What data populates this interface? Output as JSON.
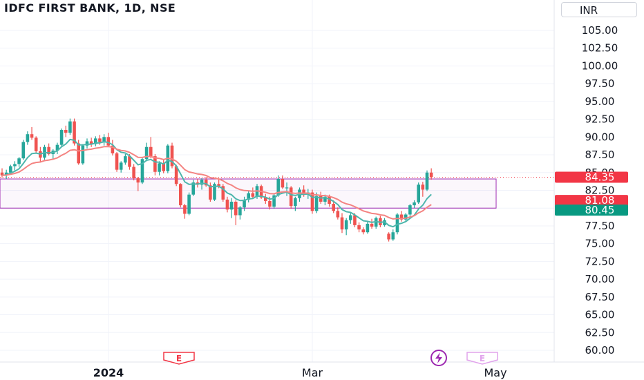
{
  "header": {
    "title": "IDFC FIRST BANK, 1D, NSE",
    "currency": "INR"
  },
  "colors": {
    "up": "#26a69a",
    "down": "#ef5350",
    "ema_fast": "#4db6ac",
    "ema_slow": "#f48482",
    "range_box": "#9c27b0",
    "grid": "#f0f3fa"
  },
  "events": {
    "earnings_label": "E",
    "dividend_icon": "lightning-icon"
  },
  "price_badges": [
    {
      "value": 84.35,
      "label": "84.35",
      "color": "#f23645"
    },
    {
      "value": 81.08,
      "label": "81.08",
      "color": "#f23645"
    },
    {
      "value": 80.45,
      "label": "80.45",
      "color": "#089981"
    }
  ],
  "chart_data": {
    "type": "candlestick",
    "symbol": "IDFC FIRST BANK",
    "interval": "1D",
    "exchange": "NSE",
    "ylim": [
      58.8,
      108.2
    ],
    "y_ticks": [
      "105.00",
      "102.50",
      "100.00",
      "97.50",
      "95.00",
      "92.50",
      "90.00",
      "87.50",
      "85.00",
      "82.50",
      "80.00",
      "77.50",
      "75.00",
      "72.50",
      "70.00",
      "67.50",
      "65.00",
      "62.50",
      "60.00"
    ],
    "x_ticks": [
      {
        "label": "2024",
        "bold": true
      },
      {
        "label": "Mar",
        "bold": false
      },
      {
        "label": "May",
        "bold": false
      }
    ],
    "range_box": {
      "low": 80.0,
      "high": 84.1
    },
    "last_price_line": 84.35,
    "candles": [
      [
        85.0,
        85.6,
        84.3,
        84.6
      ],
      [
        84.6,
        85.4,
        84.1,
        85.0
      ],
      [
        85.0,
        86.1,
        84.7,
        85.9
      ],
      [
        85.9,
        86.6,
        85.3,
        86.2
      ],
      [
        86.2,
        87.2,
        85.8,
        87.0
      ],
      [
        87.0,
        89.6,
        86.8,
        89.3
      ],
      [
        89.3,
        90.8,
        88.9,
        90.4
      ],
      [
        90.4,
        91.4,
        89.6,
        89.9
      ],
      [
        89.9,
        90.1,
        87.7,
        88.0
      ],
      [
        88.0,
        88.6,
        86.4,
        87.1
      ],
      [
        87.1,
        88.9,
        86.8,
        88.6
      ],
      [
        88.6,
        89.1,
        87.4,
        87.6
      ],
      [
        87.6,
        88.3,
        86.9,
        88.1
      ],
      [
        88.1,
        89.2,
        87.6,
        88.9
      ],
      [
        88.9,
        91.2,
        88.6,
        91.0
      ],
      [
        91.0,
        91.6,
        90.0,
        90.6
      ],
      [
        90.6,
        92.6,
        90.3,
        92.2
      ],
      [
        92.2,
        92.6,
        88.8,
        89.1
      ],
      [
        89.1,
        89.6,
        86.1,
        86.3
      ],
      [
        86.3,
        89.0,
        86.1,
        88.8
      ],
      [
        88.8,
        89.8,
        88.4,
        89.4
      ],
      [
        89.4,
        89.9,
        88.6,
        89.0
      ],
      [
        89.0,
        90.1,
        88.7,
        89.8
      ],
      [
        89.8,
        90.3,
        88.9,
        89.3
      ],
      [
        89.3,
        90.4,
        88.8,
        90.0
      ],
      [
        90.0,
        90.6,
        88.6,
        88.8
      ],
      [
        88.8,
        89.6,
        87.4,
        87.7
      ],
      [
        87.7,
        87.9,
        85.1,
        85.4
      ],
      [
        85.4,
        86.6,
        85.0,
        86.4
      ],
      [
        86.4,
        87.6,
        86.1,
        87.3
      ],
      [
        87.3,
        87.6,
        85.4,
        85.8
      ],
      [
        85.8,
        86.2,
        83.9,
        84.2
      ],
      [
        84.2,
        84.4,
        82.4,
        83.6
      ],
      [
        83.6,
        87.1,
        83.4,
        86.9
      ],
      [
        86.9,
        89.2,
        86.6,
        88.6
      ],
      [
        88.6,
        90.0,
        87.0,
        87.3
      ],
      [
        87.3,
        87.6,
        84.6,
        85.1
      ],
      [
        85.1,
        86.6,
        84.6,
        86.3
      ],
      [
        86.3,
        86.8,
        84.9,
        85.2
      ],
      [
        85.2,
        89.0,
        84.9,
        88.8
      ],
      [
        88.8,
        89.2,
        85.6,
        85.9
      ],
      [
        85.9,
        86.1,
        83.1,
        83.4
      ],
      [
        83.4,
        83.5,
        80.1,
        80.4
      ],
      [
        80.4,
        80.6,
        78.5,
        79.2
      ],
      [
        79.2,
        82.2,
        79.0,
        81.9
      ],
      [
        81.9,
        84.0,
        81.7,
        83.6
      ],
      [
        83.6,
        84.1,
        82.9,
        83.3
      ],
      [
        83.3,
        84.2,
        82.6,
        84.0
      ],
      [
        84.0,
        84.4,
        83.0,
        83.2
      ],
      [
        83.2,
        83.6,
        80.9,
        81.2
      ],
      [
        81.2,
        83.6,
        81.0,
        83.4
      ],
      [
        83.4,
        84.1,
        82.8,
        83.1
      ],
      [
        83.1,
        83.4,
        80.9,
        81.2
      ],
      [
        81.2,
        81.6,
        79.4,
        79.8
      ],
      [
        79.8,
        81.4,
        78.6,
        80.9
      ],
      [
        80.9,
        81.1,
        77.6,
        79.0
      ],
      [
        79.0,
        80.3,
        78.4,
        80.1
      ],
      [
        80.1,
        81.6,
        79.6,
        81.2
      ],
      [
        81.2,
        82.4,
        80.8,
        82.1
      ],
      [
        82.1,
        82.9,
        81.3,
        81.6
      ],
      [
        81.6,
        83.4,
        81.3,
        83.1
      ],
      [
        83.1,
        83.3,
        81.3,
        81.5
      ],
      [
        81.5,
        82.0,
        80.6,
        81.0
      ],
      [
        81.0,
        81.6,
        79.8,
        80.2
      ],
      [
        80.2,
        82.1,
        79.9,
        81.8
      ],
      [
        81.8,
        84.6,
        81.6,
        84.1
      ],
      [
        84.1,
        84.6,
        82.7,
        82.9
      ],
      [
        82.9,
        83.6,
        81.7,
        82.9
      ],
      [
        82.9,
        83.1,
        79.9,
        80.3
      ],
      [
        80.3,
        81.6,
        79.6,
        81.4
      ],
      [
        81.4,
        82.9,
        80.9,
        82.6
      ],
      [
        82.6,
        83.2,
        81.6,
        81.9
      ],
      [
        81.9,
        82.7,
        81.3,
        82.2
      ],
      [
        82.2,
        82.6,
        79.2,
        79.6
      ],
      [
        79.6,
        82.2,
        79.3,
        81.7
      ],
      [
        81.7,
        82.3,
        80.6,
        80.9
      ],
      [
        80.9,
        81.9,
        80.4,
        81.6
      ],
      [
        81.6,
        81.9,
        80.2,
        80.6
      ],
      [
        80.6,
        81.1,
        79.3,
        79.6
      ],
      [
        79.6,
        80.1,
        78.4,
        78.7
      ],
      [
        78.7,
        79.3,
        76.5,
        77.0
      ],
      [
        77.0,
        78.6,
        76.2,
        78.3
      ],
      [
        78.3,
        79.3,
        77.8,
        79.0
      ],
      [
        79.0,
        79.3,
        77.3,
        77.6
      ],
      [
        77.6,
        78.0,
        76.6,
        77.0
      ],
      [
        77.0,
        77.3,
        76.3,
        76.6
      ],
      [
        76.6,
        78.1,
        76.4,
        77.8
      ],
      [
        77.8,
        78.5,
        77.1,
        77.4
      ],
      [
        77.4,
        78.8,
        77.1,
        78.6
      ],
      [
        78.6,
        78.9,
        77.3,
        77.6
      ],
      [
        77.6,
        78.6,
        77.4,
        78.3
      ],
      [
        76.4,
        76.6,
        75.3,
        75.6
      ],
      [
        75.6,
        77.0,
        75.4,
        76.6
      ],
      [
        76.6,
        79.3,
        76.3,
        79.1
      ],
      [
        79.1,
        79.6,
        78.1,
        78.4
      ],
      [
        78.4,
        79.3,
        78.1,
        79.1
      ],
      [
        79.1,
        80.6,
        78.8,
        80.4
      ],
      [
        80.4,
        81.1,
        80.0,
        80.8
      ],
      [
        80.8,
        83.6,
        80.6,
        83.3
      ],
      [
        83.3,
        83.7,
        81.6,
        82.6
      ],
      [
        82.6,
        85.3,
        82.4,
        85.0
      ],
      [
        85.0,
        85.6,
        84.0,
        84.35
      ]
    ]
  }
}
